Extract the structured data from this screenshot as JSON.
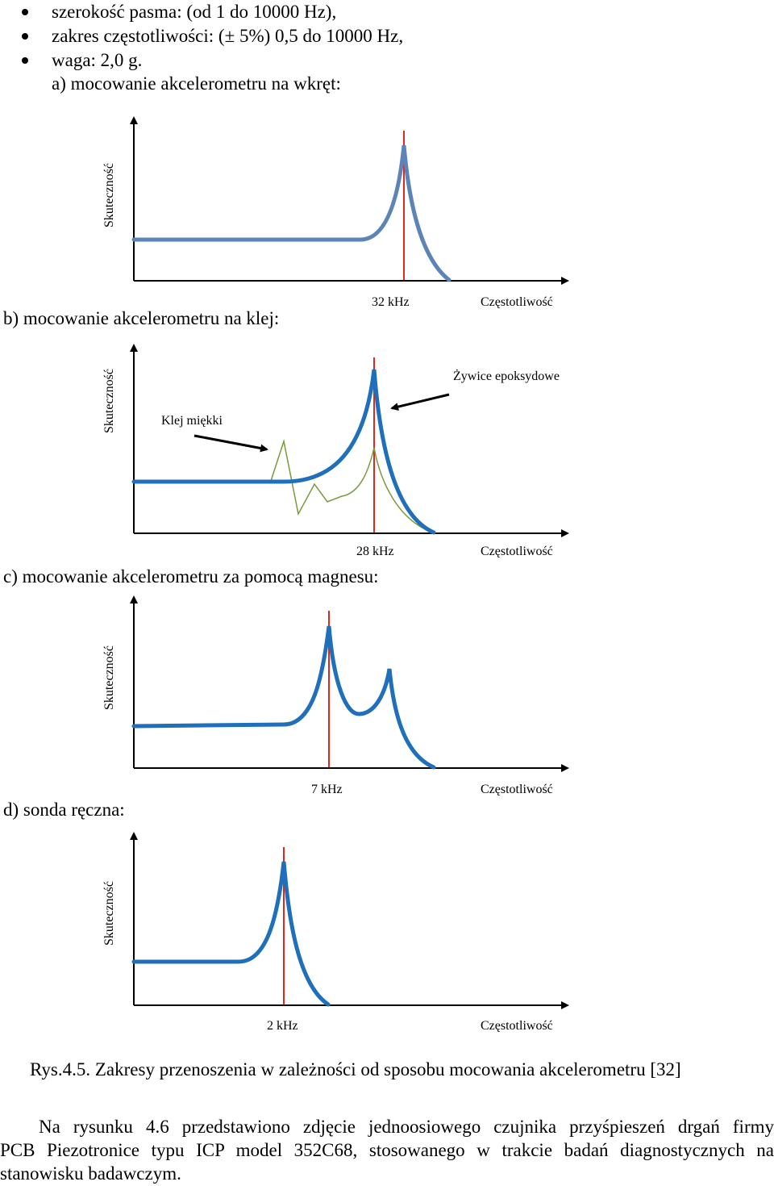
{
  "bullets": [
    "szerokość pasma: (od 1 do 10000 Hz),",
    "zakres częstotliwości: (± 5%) 0,5 do 10000 Hz,",
    "waga: 2,0 g."
  ],
  "panels": {
    "a": {
      "heading": "a) mocowanie akcelerometru na wkręt:",
      "ylabel": "Skuteczność",
      "freq": "32 kHz",
      "xlabel": "Częstotliwość"
    },
    "b": {
      "heading": "b) mocowanie akcelerometru na klej:",
      "ylabel": "Skuteczność",
      "freq": "28 kHz",
      "xlabel": "Częstotliwość",
      "annot_hard": "Żywice epoksydowe",
      "annot_soft": "Klej miękki"
    },
    "c": {
      "heading": "c) mocowanie akcelerometru za pomocą magnesu:",
      "ylabel": "Skuteczność",
      "freq": "7 kHz",
      "xlabel": "Częstotliwość"
    },
    "d": {
      "heading": "d) sonda ręczna:",
      "ylabel": "Skuteczność",
      "freq": "2 kHz",
      "xlabel": "Częstotliwość"
    }
  },
  "caption": "Rys.4.5. Zakresy przenoszenia w zależności od sposobu mocowania akcelerometru [32]",
  "paragraph": {
    "line1": "Na rysunku 4.6 przedstawiono zdjęcie jednoosiowego czujnika przyśpieszeń drgań firmy",
    "line2": "PCB Piezotronice typu ICP model 352C68, stosowanego w trakcie badań diagnostycznych na",
    "line3": "stanowisku badawczym."
  },
  "colors": {
    "curve_a": "#5b84b8",
    "curve": "#1f6fba",
    "marker": "#e0281f",
    "soft_curve": "#7a9a3a",
    "axis": "#000000"
  }
}
